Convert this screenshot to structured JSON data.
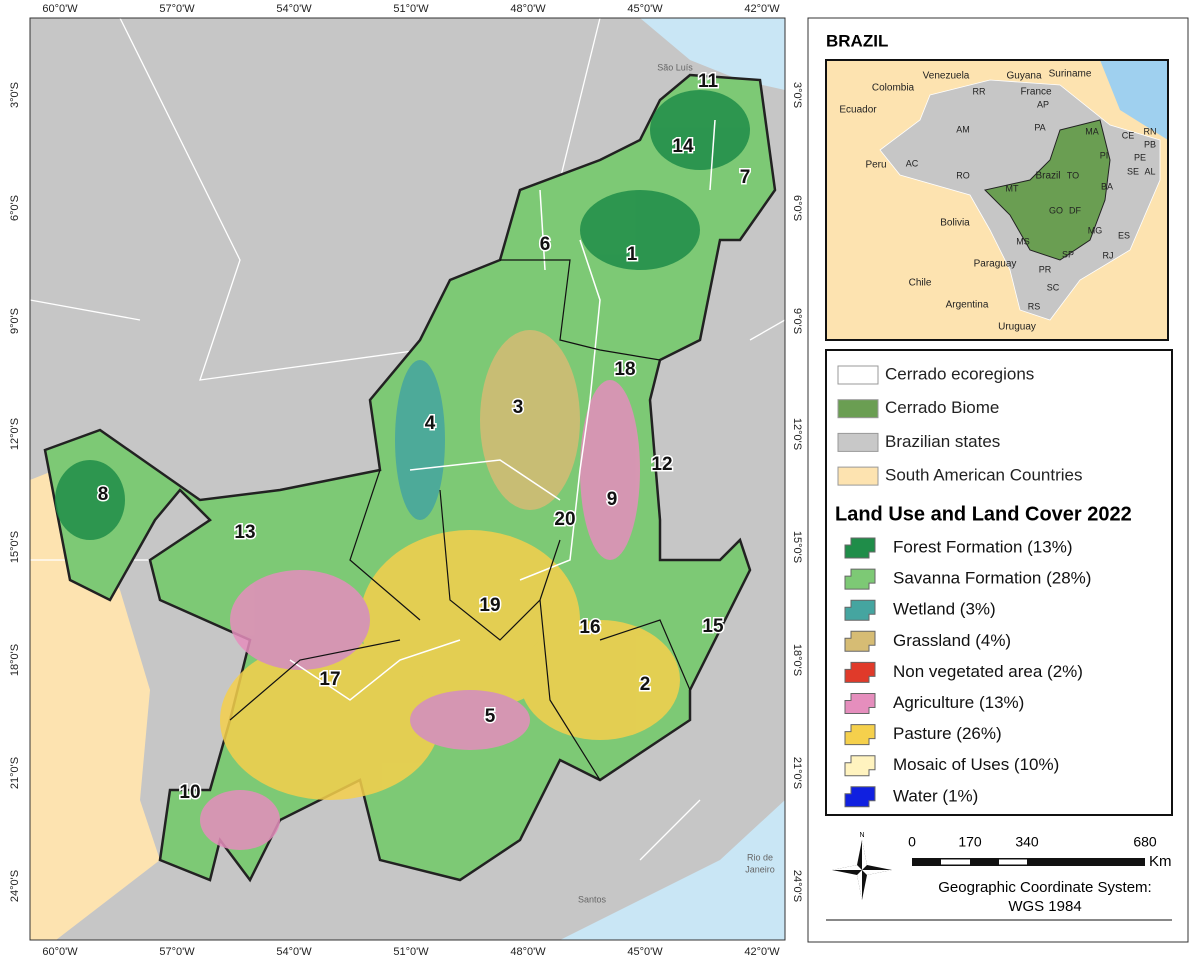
{
  "map": {
    "lon_labels": [
      "60°0'W",
      "57°0'W",
      "54°0'W",
      "51°0'W",
      "48°0'W",
      "45°0'W",
      "42°0'W"
    ],
    "lat_labels": [
      "3°0'S",
      "6°0'S",
      "9°0'S",
      "12°0'S",
      "15°0'S",
      "18°0'S",
      "21°0'S",
      "24°0'S"
    ],
    "region_labels": [
      "1",
      "2",
      "3",
      "4",
      "5",
      "6",
      "7",
      "8",
      "9",
      "10",
      "11",
      "12",
      "13",
      "14",
      "15",
      "16",
      "17",
      "18",
      "19",
      "20"
    ],
    "place_labels": [
      "São Luís",
      "Rio de",
      "Janeiro",
      "Santos"
    ]
  },
  "inset": {
    "title": "BRAZIL",
    "countries": [
      "Venezuela",
      "Guyana",
      "Suriname",
      "Colombia",
      "France",
      "Ecuador",
      "Peru",
      "Bolivia",
      "Paraguay",
      "Chile",
      "Argentina",
      "Uruguay",
      "Brazil"
    ],
    "states": [
      "RR",
      "AP",
      "AM",
      "PA",
      "MA",
      "CE",
      "RN",
      "PB",
      "PE",
      "AL",
      "SE",
      "PI",
      "AC",
      "RO",
      "TO",
      "BA",
      "MT",
      "GO",
      "DF",
      "MG",
      "ES",
      "MS",
      "SP",
      "RJ",
      "PR",
      "SC",
      "RS"
    ]
  },
  "legend": {
    "layers": [
      {
        "label": "Cerrado ecoregions",
        "color": "#ffffff"
      },
      {
        "label": "Cerrado Biome",
        "color": "#6a9e52"
      },
      {
        "label": "Brazilian states",
        "color": "#c8c8c8"
      },
      {
        "label": "South American Countries",
        "color": "#fde3b0"
      }
    ],
    "lulc_title": "Land Use and Land Cover 2022",
    "classes": [
      {
        "label": "Forest Formation (13%)",
        "color": "#1f8d49"
      },
      {
        "label": "Savanna Formation (28%)",
        "color": "#7dc975"
      },
      {
        "label": "Wetland (3%)",
        "color": "#45a5a0"
      },
      {
        "label": "Grassland (4%)",
        "color": "#d6bc74"
      },
      {
        "label": "Non vegetated area (2%)",
        "color": "#e03a2a"
      },
      {
        "label": "Agriculture (13%)",
        "color": "#e58ebd"
      },
      {
        "label": "Pasture (26%)",
        "color": "#f5d04c"
      },
      {
        "label": "Mosaic of Uses (10%)",
        "color": "#fff3bf"
      },
      {
        "label": "Water (1%)",
        "color": "#1020e0"
      }
    ]
  },
  "scale": {
    "ticks": [
      "0",
      "170",
      "340",
      "680"
    ],
    "unit": "Km",
    "crs": [
      "Geographic Coordinate System:",
      "WGS 1984"
    ]
  }
}
